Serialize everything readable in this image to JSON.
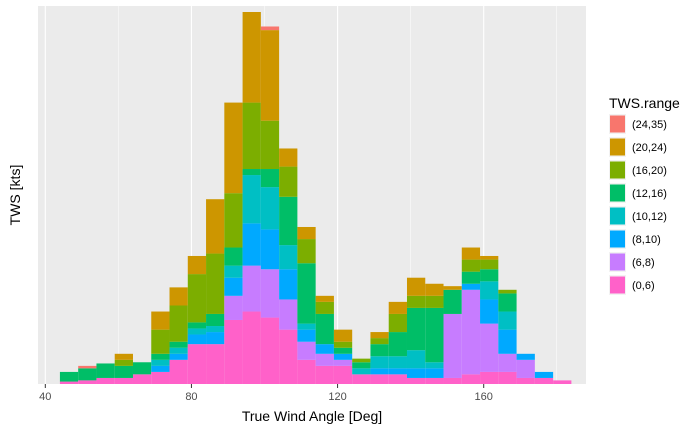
{
  "chart_data": {
    "type": "stacked-histogram",
    "xlabel": "True Wind Angle [Deg]",
    "ylabel": "TWS [kts]",
    "xlim": [
      38,
      188
    ],
    "x_ticks": [
      40,
      80,
      120,
      160
    ],
    "y_ticks": [],
    "y_scale": "relative",
    "grid": true,
    "legend_position": "right",
    "legend_title": "TWS.range",
    "bin_width": 5,
    "bin_starts": [
      44,
      49,
      54,
      59,
      64,
      69,
      74,
      79,
      84,
      89,
      94,
      99,
      104,
      109,
      114,
      119,
      124,
      129,
      134,
      139,
      144,
      149,
      154,
      159,
      164,
      169,
      174,
      179
    ],
    "series": [
      {
        "name": "(0,6)",
        "color": "#FF61C9",
        "values": [
          2,
          3,
          5,
          5,
          8,
          10,
          20,
          33,
          33,
          53,
          60,
          55,
          45,
          20,
          15,
          15,
          8,
          8,
          8,
          5,
          5,
          5,
          8,
          10,
          10,
          5,
          5,
          3
        ]
      },
      {
        "name": "(6,8)",
        "color": "#C77CFF",
        "values": [
          0,
          0,
          0,
          0,
          0,
          0,
          0,
          0,
          0,
          20,
          38,
          40,
          25,
          15,
          10,
          5,
          0,
          0,
          0,
          0,
          0,
          53,
          70,
          40,
          15,
          15,
          0,
          0
        ]
      },
      {
        "name": "(8,10)",
        "color": "#00A9FF",
        "values": [
          0,
          0,
          0,
          0,
          0,
          5,
          5,
          8,
          10,
          15,
          35,
          33,
          25,
          10,
          8,
          5,
          0,
          5,
          5,
          8,
          8,
          0,
          5,
          20,
          20,
          5,
          5,
          0
        ]
      },
      {
        "name": "(10,12)",
        "color": "#00BFC4",
        "values": [
          0,
          0,
          0,
          0,
          0,
          5,
          5,
          5,
          5,
          10,
          40,
          35,
          20,
          5,
          0,
          0,
          5,
          10,
          10,
          15,
          5,
          0,
          0,
          15,
          15,
          0,
          0,
          0
        ]
      },
      {
        "name": "(12,16)",
        "color": "#00BE67",
        "values": [
          8,
          10,
          12,
          10,
          10,
          5,
          5,
          5,
          10,
          15,
          5,
          15,
          40,
          50,
          25,
          5,
          5,
          10,
          20,
          35,
          45,
          20,
          10,
          10,
          15,
          0,
          0,
          0
        ]
      },
      {
        "name": "(16,20)",
        "color": "#7CAE00",
        "values": [
          0,
          0,
          0,
          5,
          0,
          20,
          30,
          40,
          50,
          45,
          55,
          40,
          25,
          20,
          10,
          5,
          3,
          5,
          15,
          10,
          10,
          0,
          10,
          8,
          3,
          0,
          0,
          0
        ]
      },
      {
        "name": "(20,24)",
        "color": "#CD9600",
        "values": [
          0,
          0,
          0,
          5,
          0,
          15,
          15,
          15,
          45,
          75,
          75,
          75,
          15,
          10,
          5,
          10,
          0,
          5,
          10,
          15,
          10,
          3,
          10,
          3,
          0,
          0,
          0,
          0
        ]
      },
      {
        "name": "(24,35)",
        "color": "#F8766D",
        "values": [
          0,
          2,
          0,
          0,
          0,
          0,
          0,
          0,
          0,
          0,
          0,
          3,
          0,
          0,
          0,
          0,
          0,
          0,
          0,
          0,
          0,
          0,
          0,
          0,
          0,
          0,
          0,
          0
        ]
      }
    ],
    "legend_order": [
      "(24,35)",
      "(20,24)",
      "(16,20)",
      "(12,16)",
      "(10,12)",
      "(8,10)",
      "(6,8)",
      "(0,6)"
    ]
  }
}
